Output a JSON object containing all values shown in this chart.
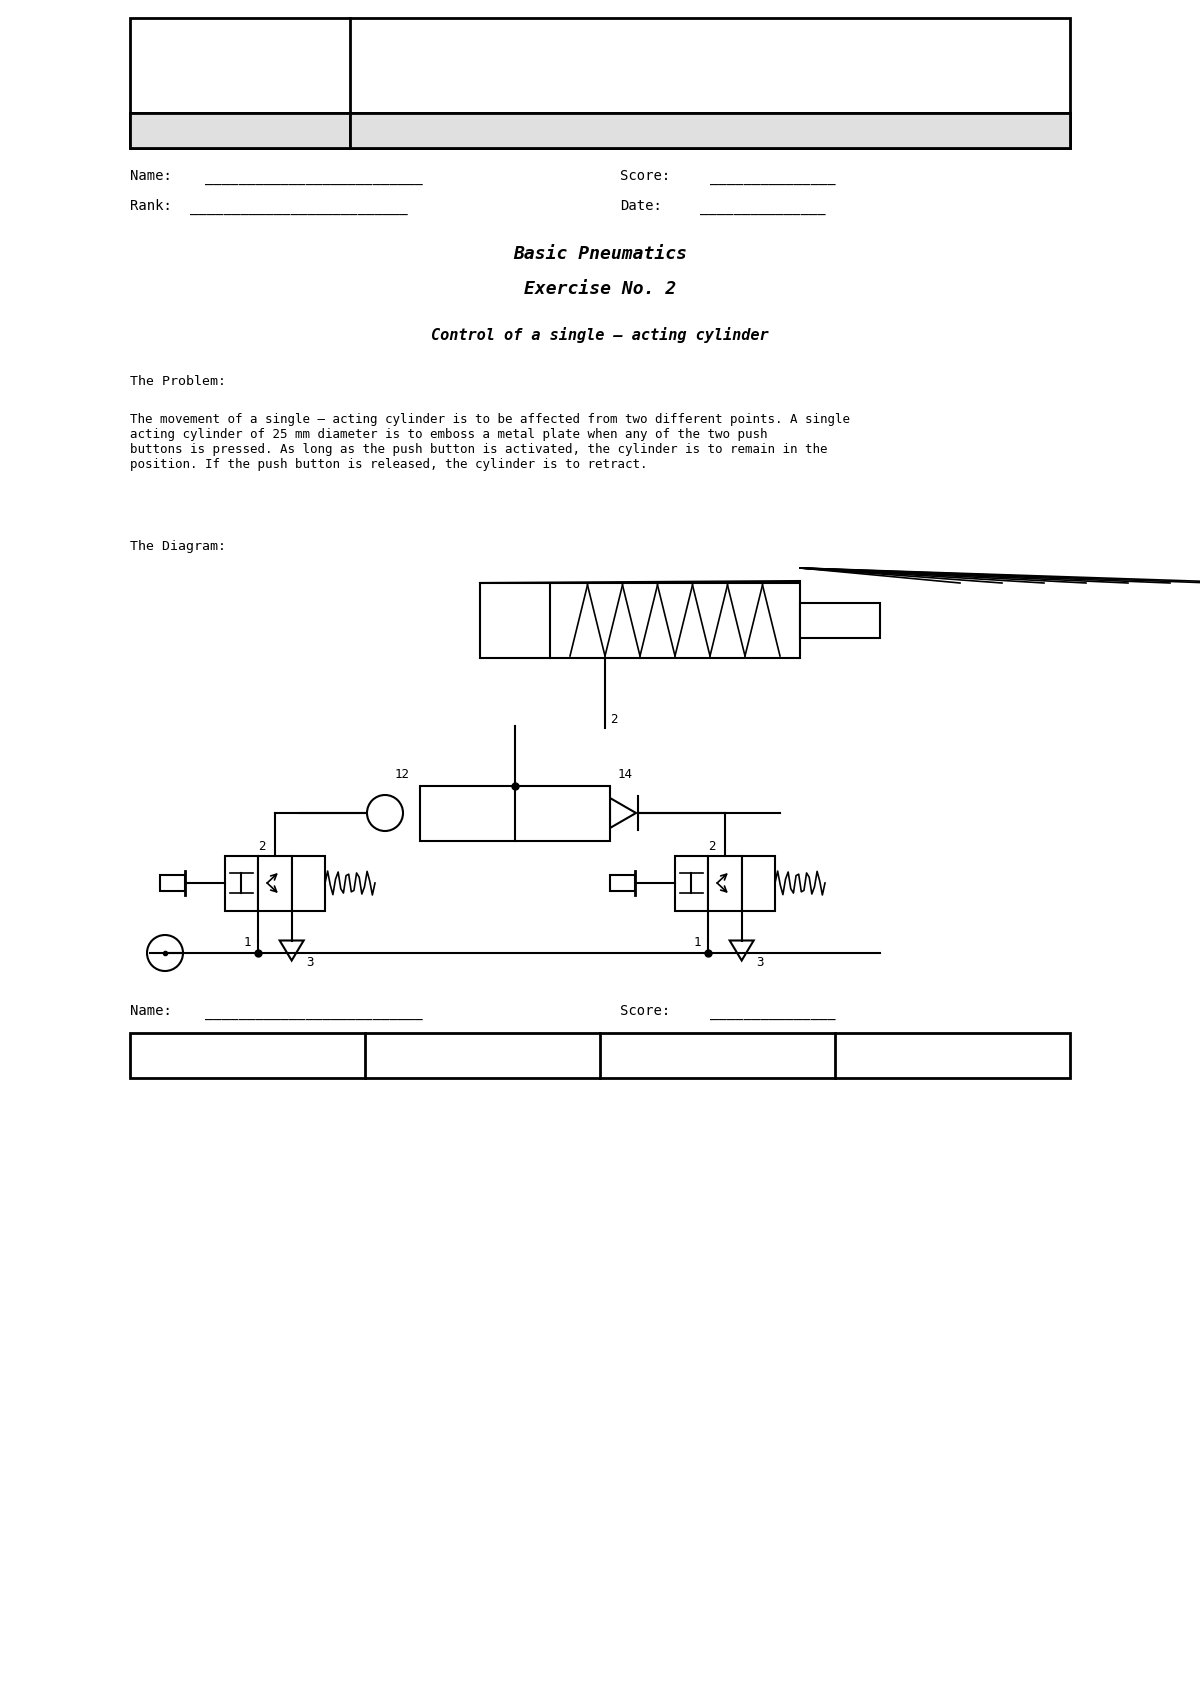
{
  "bg_color": "#ffffff",
  "title1": "Basic Pneumatics",
  "title2": "Exercise No. 2",
  "subtitle": "Control of a single – acting cylinder",
  "problem_label": "The Problem:",
  "problem_text": "The movement of a single – acting cylinder is to be affected from two different points. A single\nacting cylinder of 25 mm diameter is to emboss a metal plate when any of the two push\nbuttons is pressed. As long as the push button is activated, the cylinder is to remain in the\nposition. If the push button is released, the cylinder is to retract.",
  "diagram_label": "The Diagram:",
  "name_label": "Name:",
  "rank_label": "Rank:",
  "score_label": "Score:",
  "date_label": "Date:",
  "name_line": "__________________________",
  "rank_line": "__________________________",
  "score_line": "_______________",
  "date_line": "_______________",
  "bottom_name_label": "Name:",
  "bottom_name_line": "__________________________",
  "bottom_score_label": "Score:",
  "bottom_score_line": "_______________"
}
